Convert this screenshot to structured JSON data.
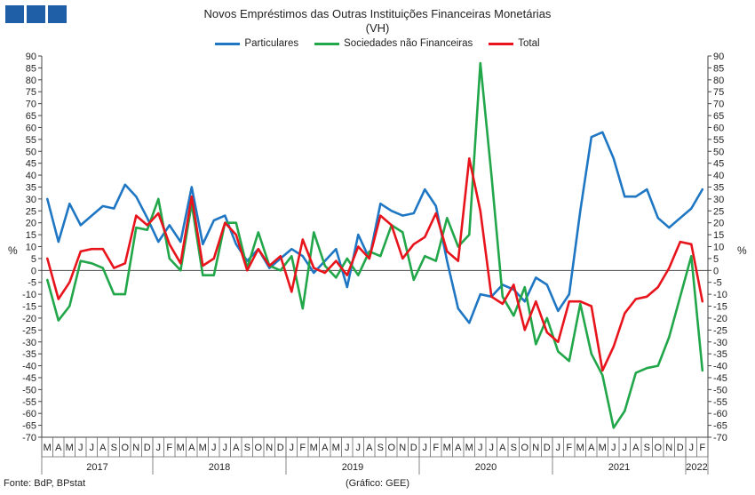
{
  "header": {
    "title": "Novos Empréstimos das Outras Instituições Financeiras Monetárias",
    "subtitle": "(VH)"
  },
  "axis": {
    "unit_left": "%",
    "unit_right": "%"
  },
  "footer": {
    "source": "Fonte: BdP, BPstat",
    "credit": "(Gráfico: GEE)"
  },
  "colors": {
    "particulares": "#1f77c4",
    "sociedades": "#22a64a",
    "total": "#e8141c",
    "logo": "#1f5fa8"
  },
  "chart_data": {
    "type": "line",
    "title": "Novos Empréstimos das Outras Instituições Financeiras Monetárias",
    "subtitle": "(VH)",
    "ylabel": "%",
    "ylim": [
      -70,
      90
    ],
    "yticks": [
      -70,
      -65,
      -60,
      -55,
      -50,
      -45,
      -40,
      -35,
      -30,
      -25,
      -20,
      -15,
      -10,
      -5,
      0,
      5,
      10,
      15,
      20,
      25,
      30,
      35,
      40,
      45,
      50,
      55,
      60,
      65,
      70,
      75,
      80,
      85,
      90
    ],
    "grid": false,
    "legend_position": "top",
    "month_labels": [
      "M",
      "A",
      "M",
      "J",
      "J",
      "A",
      "S",
      "O",
      "N",
      "D",
      "J",
      "F",
      "M",
      "A",
      "M",
      "J",
      "J",
      "A",
      "S",
      "O",
      "N",
      "D",
      "J",
      "F",
      "M",
      "A",
      "M",
      "J",
      "J",
      "A",
      "S",
      "O",
      "N",
      "D",
      "J",
      "F",
      "M",
      "A",
      "M",
      "J",
      "J",
      "A",
      "S",
      "O",
      "N",
      "D",
      "J",
      "F",
      "M",
      "A",
      "M",
      "J",
      "J",
      "A",
      "S",
      "O",
      "N",
      "D",
      "J",
      "F"
    ],
    "years": [
      {
        "label": "2017",
        "start": 0,
        "end": 9
      },
      {
        "label": "2018",
        "start": 10,
        "end": 21
      },
      {
        "label": "2019",
        "start": 22,
        "end": 33
      },
      {
        "label": "2020",
        "start": 34,
        "end": 45
      },
      {
        "label": "2021",
        "start": 46,
        "end": 57
      },
      {
        "label": "2022",
        "start": 58,
        "end": 59
      }
    ],
    "series": [
      {
        "name": "Particulares",
        "color": "#1f77c4",
        "values": [
          30,
          12,
          28,
          19,
          23,
          27,
          26,
          36,
          31,
          22,
          12,
          19,
          12,
          35,
          11,
          21,
          23,
          11,
          4,
          9,
          1,
          5,
          9,
          6,
          -1,
          4,
          9,
          -7,
          15,
          5,
          28,
          25,
          23,
          24,
          34,
          27,
          4,
          -16,
          -22,
          -10,
          -11,
          -6,
          -8,
          -13,
          -3,
          -6,
          -17,
          -10,
          25,
          56,
          58,
          47,
          31,
          31,
          34,
          22,
          18,
          22,
          26,
          34
        ]
      },
      {
        "name": "Sociedades não Financeiras",
        "color": "#22a64a",
        "values": [
          -4,
          -21,
          -15,
          4,
          3,
          1,
          -10,
          -10,
          18,
          17,
          30,
          5,
          0,
          28,
          -2,
          -2,
          20,
          20,
          1,
          16,
          2,
          0,
          6,
          -16,
          16,
          2,
          -3,
          5,
          -2,
          8,
          6,
          19,
          16,
          -4,
          6,
          4,
          22,
          10,
          15,
          87,
          40,
          -11,
          -19,
          -7,
          -31,
          -20,
          -34,
          -38,
          -14,
          -35,
          -44,
          -66,
          -59,
          -43,
          -41,
          -40,
          -28,
          -11,
          6,
          -42
        ]
      },
      {
        "name": "Total",
        "color": "#e8141c",
        "values": [
          5,
          -12,
          -5,
          8,
          9,
          9,
          1,
          3,
          23,
          19,
          24,
          11,
          3,
          31,
          2,
          5,
          20,
          15,
          0,
          9,
          2,
          6,
          -9,
          13,
          1,
          -1,
          4,
          -2,
          10,
          5,
          23,
          19,
          5,
          11,
          14,
          24,
          8,
          4,
          47,
          25,
          -11,
          -14,
          -6,
          -25,
          -13,
          -26,
          -30,
          -13,
          -13,
          -15,
          -42,
          -32,
          -18,
          -12,
          -11,
          -7,
          1,
          12,
          11,
          -13
        ]
      }
    ]
  }
}
